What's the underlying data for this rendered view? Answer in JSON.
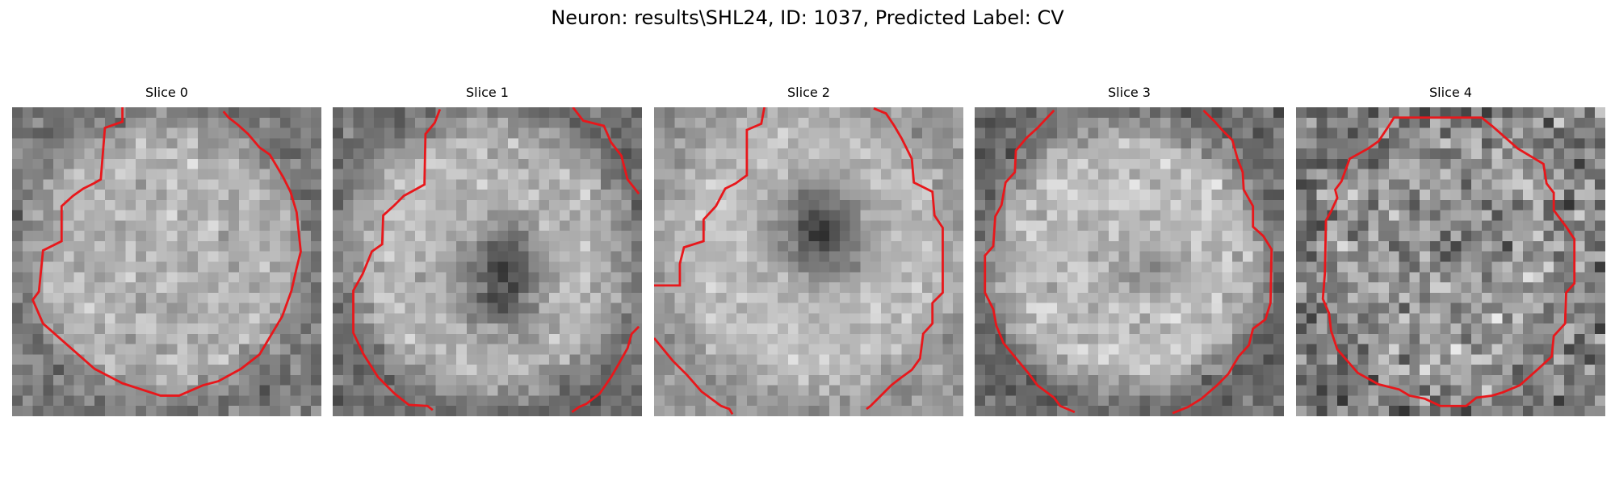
{
  "figure": {
    "title": "Neuron: results\\SHL24, ID: 1037, Predicted Label: CV",
    "contour_color": "#e8171b"
  },
  "panels": [
    {
      "label": "Slice 0",
      "dark_blob": null,
      "contour_type": "left-arc-large"
    },
    {
      "label": "Slice 1",
      "dark_blob": "center-lower",
      "contour_type": "open-corners"
    },
    {
      "label": "Slice 2",
      "dark_blob": "center-upper",
      "contour_type": "open-corners-left"
    },
    {
      "label": "Slice 3",
      "dark_blob": "faint-center",
      "contour_type": "octagon-open-top"
    },
    {
      "label": "Slice 4",
      "dark_blob": null,
      "contour_type": "octagon-closed"
    }
  ]
}
